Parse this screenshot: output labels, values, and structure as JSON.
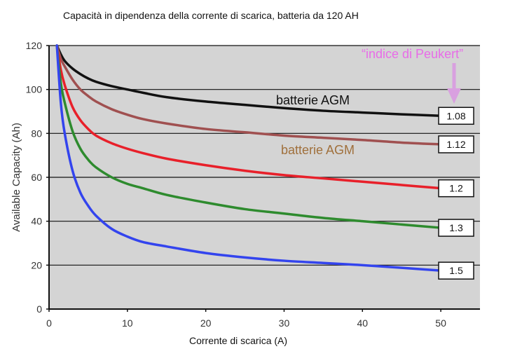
{
  "chart_data": {
    "type": "line",
    "title": "Capacità in dipendenza della corrente di scarica, batteria da 120 AH",
    "xlabel": "Corrente di scarica (A)",
    "ylabel": "Available Capacity (Ah)",
    "xlim": [
      0,
      55
    ],
    "ylim": [
      0,
      120
    ],
    "x_ticks": [
      0,
      10,
      20,
      30,
      40,
      50
    ],
    "y_ticks": [
      0,
      20,
      40,
      60,
      80,
      100,
      120
    ],
    "grid": "horizontal",
    "background_color": "#d4d4d4",
    "x": [
      1,
      1.5,
      2,
      3,
      4,
      5,
      6,
      8,
      10,
      12,
      15,
      20,
      25,
      30,
      35,
      40,
      45,
      50
    ],
    "series": [
      {
        "name": "1.08",
        "color": "#111111",
        "values": [
          120,
          116,
          113,
          109.5,
          107,
          105,
          103.5,
          101.5,
          100,
          98.5,
          96.5,
          94.5,
          93,
          91.5,
          90.3,
          89.5,
          88.7,
          88
        ]
      },
      {
        "name": "1.12",
        "color": "#a05050",
        "values": [
          120,
          114,
          110.5,
          104.5,
          100,
          97,
          94.5,
          91,
          88.5,
          86.5,
          84.5,
          82,
          80.5,
          79,
          78,
          77,
          75.8,
          75
        ]
      },
      {
        "name": "1.2",
        "color": "#e8202a",
        "values": [
          120,
          109,
          102,
          92,
          86,
          82,
          79,
          75.5,
          73,
          71,
          68.5,
          65.5,
          63,
          61,
          59.5,
          58,
          56.5,
          55
        ]
      },
      {
        "name": "1.3",
        "color": "#2e8b2e",
        "values": [
          120,
          103,
          94,
          81,
          73,
          68,
          64.5,
          60,
          57,
          55,
          52,
          48.5,
          45.5,
          43.5,
          41.5,
          40,
          38.5,
          37
        ]
      },
      {
        "name": "1.5",
        "color": "#3344ee",
        "values": [
          120,
          94,
          80,
          63,
          53,
          47,
          42.5,
          36.5,
          33,
          30.5,
          28.5,
          25.5,
          23.5,
          22,
          21,
          20,
          18.8,
          17.5
        ]
      }
    ],
    "annotations": [
      {
        "text": "batterie AGM",
        "color": "#111111"
      },
      {
        "text": "batterie AGM",
        "color": "#a0703c"
      },
      {
        "text": "“indice di Peukert”",
        "color": "#e86ce8"
      }
    ]
  }
}
